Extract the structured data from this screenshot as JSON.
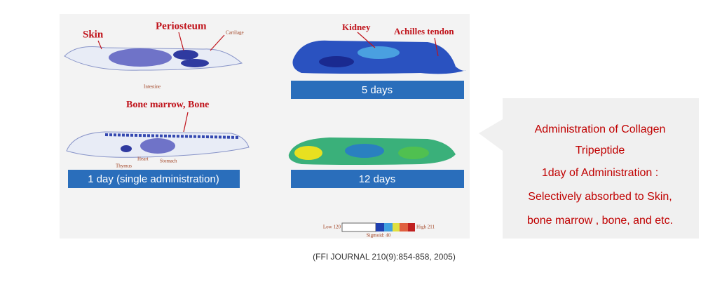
{
  "figure": {
    "labels": {
      "skin": "Skin",
      "periosteum": "Periosteum",
      "cartilage": "Cartilage",
      "intestine": "Intestine",
      "bone_marrow": "Bone marrow,  Bone",
      "thymus": "Thymus",
      "heart": "Heart",
      "stomach": "Stomach",
      "kidney": "Kidney",
      "achilles": "Achilles tendon"
    },
    "bars": {
      "day1": "1  day (single administration)",
      "day5": "5 days",
      "day12": "12 days"
    },
    "scale": {
      "low": "Low 120",
      "high": "High 211",
      "sigmoid": "Sigmoid: 40"
    }
  },
  "callout": {
    "lines": [
      "Administration of Collagen",
      "Tripeptide",
      "1day of Administration :",
      "Selectively absorbed to Skin,",
      "bone marrow , bone, and etc."
    ]
  },
  "citation": "(FFI JOURNAL 210(9):854-858, 2005)"
}
